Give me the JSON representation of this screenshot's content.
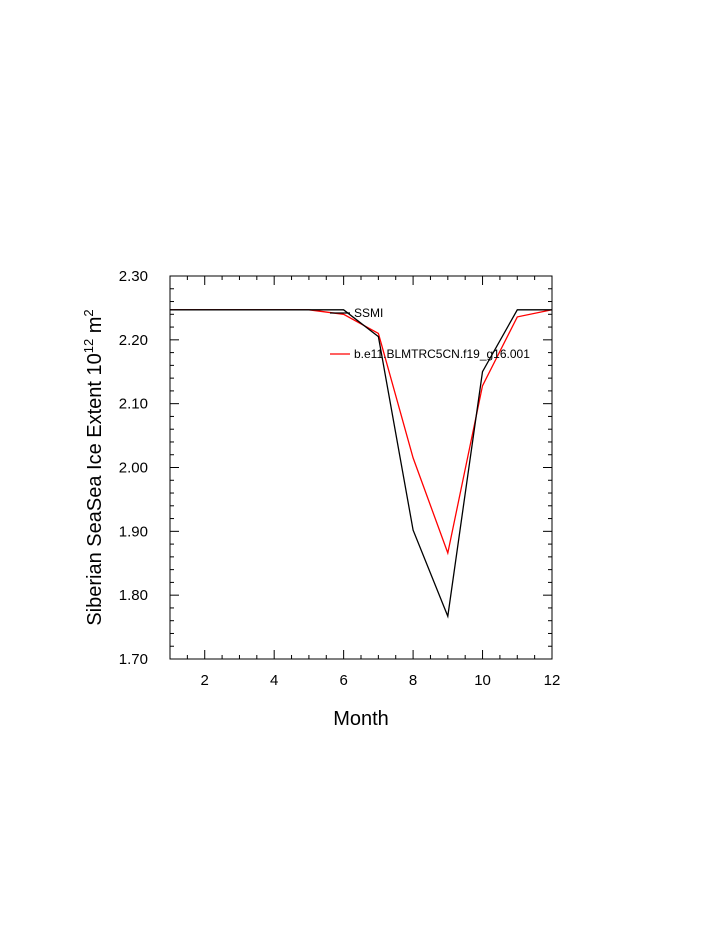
{
  "chart_data": {
    "type": "line",
    "title": "",
    "xlabel": "Month",
    "ylabel_main": "Siberian SeaSea Ice Extent 10",
    "ylabel_exp1": "12",
    "ylabel_unit": " m",
    "ylabel_exp2": "2",
    "xlim": [
      1,
      12
    ],
    "ylim": [
      1.7,
      2.3
    ],
    "xticks": [
      2,
      4,
      6,
      8,
      10,
      12
    ],
    "xtick_labels": [
      "2",
      "4",
      "6",
      "8",
      "10",
      "12"
    ],
    "yticks": [
      1.7,
      1.8,
      1.9,
      2.0,
      2.1,
      2.2,
      2.3
    ],
    "ytick_labels": [
      "1.70",
      "1.80",
      "1.90",
      "2.00",
      "2.10",
      "2.20",
      "2.30"
    ],
    "grid": false,
    "legend_position": "top-right",
    "x": [
      1,
      2,
      3,
      4,
      5,
      6,
      7,
      8,
      9,
      10,
      11,
      12
    ],
    "series": [
      {
        "name": "SSMI",
        "color": "#000000",
        "values": [
          2.247,
          2.247,
          2.247,
          2.247,
          2.247,
          2.247,
          2.205,
          1.902,
          1.767,
          2.15,
          2.247,
          2.247
        ]
      },
      {
        "name": "b.e11.BLMTRC5CN.f19_g16.001",
        "color": "#ff0000",
        "values": [
          2.247,
          2.247,
          2.247,
          2.247,
          2.247,
          2.24,
          2.21,
          2.015,
          1.866,
          2.128,
          2.236,
          2.247
        ]
      }
    ]
  }
}
